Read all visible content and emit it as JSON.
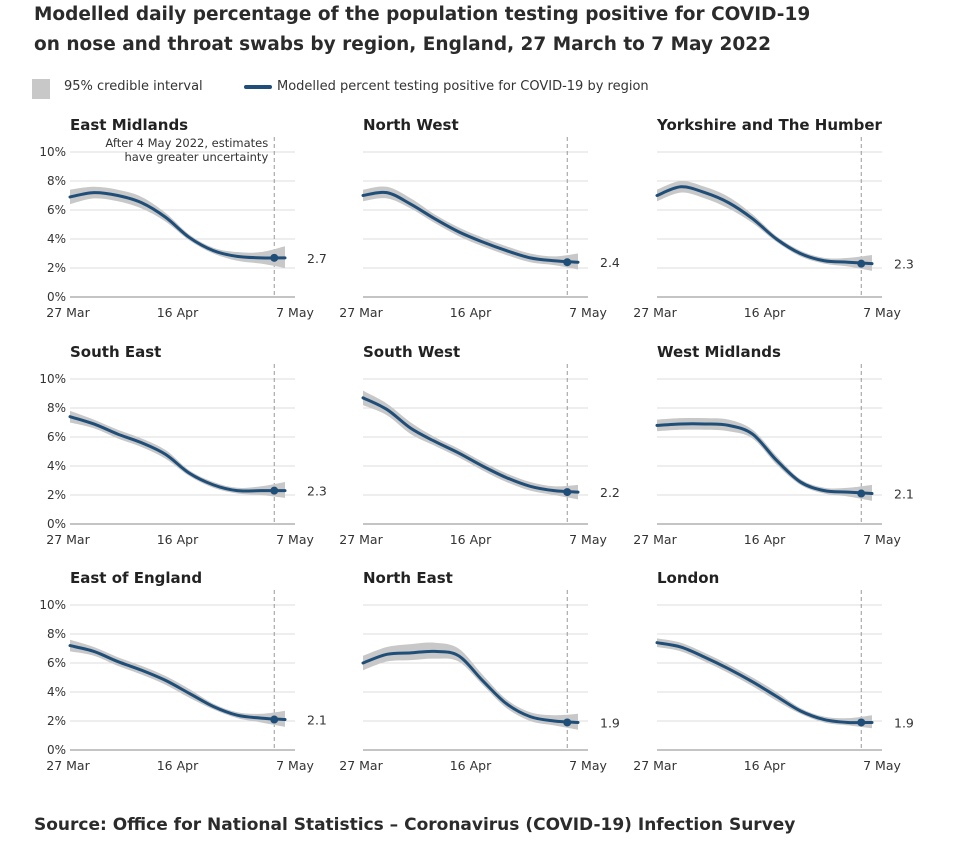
{
  "title_line1": "Modelled daily percentage of the population testing positive for COVID-19",
  "title_line2": "on nose and throat swabs by region, England, 27 March to 7 May 2022",
  "legend": {
    "ci": "95% credible interval",
    "line": "Modelled percent testing positive for COVID-19 by region"
  },
  "annotation": [
    "After 4 May 2022, estimates",
    "have greater uncertainty"
  ],
  "source": "Source: Office for National Statistics – Coronavirus (COVID-19) Infection Survey",
  "colors": {
    "line": "#1f4e79",
    "band": "#c8c8c8",
    "grid": "#dcdcdc",
    "text": "#333333",
    "dash": "#999999"
  },
  "chart_data": {
    "type": "line",
    "x_ticks": [
      "27 Mar",
      "16 Apr",
      "7 May"
    ],
    "y_ticks": [
      "0%",
      "2%",
      "4%",
      "6%",
      "8%",
      "10%"
    ],
    "ylim": [
      0,
      10
    ],
    "x_dates": [
      "27 Mar",
      "1 Apr",
      "6 Apr",
      "11 Apr",
      "16 Apr",
      "21 Apr",
      "26 Apr",
      "1 May",
      "4 May",
      "7 May"
    ],
    "uncertainty_after": "4 May",
    "panels": [
      {
        "name": "East Midlands",
        "end_label": "2.7",
        "values": [
          6.9,
          7.2,
          7.0,
          6.5,
          5.5,
          4.1,
          3.2,
          2.8,
          2.7,
          2.7
        ],
        "ci_low": [
          6.4,
          6.8,
          6.6,
          6.1,
          5.2,
          3.9,
          3.0,
          2.5,
          2.3,
          2.0
        ],
        "ci_high": [
          7.4,
          7.6,
          7.4,
          6.9,
          5.8,
          4.3,
          3.4,
          3.1,
          3.1,
          3.5
        ]
      },
      {
        "name": "North West",
        "end_label": "2.4",
        "values": [
          7.0,
          7.2,
          6.4,
          5.4,
          4.5,
          3.8,
          3.2,
          2.7,
          2.5,
          2.4
        ],
        "ci_low": [
          6.6,
          6.8,
          6.1,
          5.1,
          4.2,
          3.5,
          2.9,
          2.4,
          2.2,
          1.9
        ],
        "ci_high": [
          7.4,
          7.6,
          6.8,
          5.7,
          4.8,
          4.1,
          3.5,
          3.0,
          2.8,
          3.0
        ]
      },
      {
        "name": "Yorkshire and The Humber",
        "end_label": "2.3",
        "values": [
          7.0,
          7.6,
          7.2,
          6.5,
          5.4,
          4.0,
          3.0,
          2.5,
          2.4,
          2.3
        ],
        "ci_low": [
          6.6,
          7.2,
          6.8,
          6.1,
          5.1,
          3.8,
          2.8,
          2.3,
          2.1,
          1.8
        ],
        "ci_high": [
          7.4,
          8.0,
          7.6,
          6.9,
          5.7,
          4.2,
          3.2,
          2.7,
          2.7,
          2.9
        ]
      },
      {
        "name": "South East",
        "end_label": "2.3",
        "values": [
          7.4,
          6.9,
          6.2,
          5.6,
          4.8,
          3.5,
          2.7,
          2.3,
          2.3,
          2.3
        ],
        "ci_low": [
          7.0,
          6.6,
          5.9,
          5.3,
          4.5,
          3.3,
          2.5,
          2.1,
          2.0,
          1.8
        ],
        "ci_high": [
          7.8,
          7.2,
          6.5,
          5.9,
          5.1,
          3.7,
          2.9,
          2.5,
          2.6,
          2.9
        ]
      },
      {
        "name": "South West",
        "end_label": "2.2",
        "values": [
          8.7,
          7.9,
          6.6,
          5.7,
          4.9,
          4.0,
          3.2,
          2.6,
          2.3,
          2.2
        ],
        "ci_low": [
          8.2,
          7.5,
          6.2,
          5.4,
          4.6,
          3.7,
          2.9,
          2.3,
          2.0,
          1.7
        ],
        "ci_high": [
          9.2,
          8.3,
          7.0,
          6.0,
          5.2,
          4.3,
          3.5,
          2.9,
          2.6,
          2.7
        ]
      },
      {
        "name": "West Midlands",
        "end_label": "2.1",
        "values": [
          6.8,
          6.9,
          6.9,
          6.8,
          6.2,
          4.4,
          2.9,
          2.3,
          2.2,
          2.1
        ],
        "ci_low": [
          6.4,
          6.5,
          6.5,
          6.4,
          5.9,
          4.1,
          2.7,
          2.1,
          1.9,
          1.6
        ],
        "ci_high": [
          7.2,
          7.3,
          7.3,
          7.2,
          6.5,
          4.7,
          3.1,
          2.5,
          2.5,
          2.7
        ]
      },
      {
        "name": "East of England",
        "end_label": "2.1",
        "values": [
          7.2,
          6.8,
          6.1,
          5.5,
          4.8,
          3.9,
          3.0,
          2.4,
          2.2,
          2.1
        ],
        "ci_low": [
          6.8,
          6.5,
          5.8,
          5.2,
          4.5,
          3.6,
          2.8,
          2.2,
          1.9,
          1.6
        ],
        "ci_high": [
          7.6,
          7.1,
          6.4,
          5.8,
          5.1,
          4.2,
          3.2,
          2.6,
          2.5,
          2.7
        ]
      },
      {
        "name": "North East",
        "end_label": "1.9",
        "values": [
          6.0,
          6.6,
          6.7,
          6.8,
          6.5,
          4.8,
          3.2,
          2.3,
          2.0,
          1.9
        ],
        "ci_low": [
          5.5,
          6.1,
          6.2,
          6.3,
          6.1,
          4.5,
          2.9,
          2.0,
          1.7,
          1.4
        ],
        "ci_high": [
          6.5,
          7.1,
          7.3,
          7.4,
          7.0,
          5.2,
          3.5,
          2.6,
          2.4,
          2.5
        ]
      },
      {
        "name": "London",
        "end_label": "1.9",
        "values": [
          7.4,
          7.1,
          6.4,
          5.6,
          4.7,
          3.7,
          2.7,
          2.1,
          1.9,
          1.9
        ],
        "ci_low": [
          7.1,
          6.8,
          6.1,
          5.3,
          4.4,
          3.4,
          2.5,
          1.9,
          1.7,
          1.5
        ],
        "ci_high": [
          7.7,
          7.4,
          6.7,
          5.9,
          5.0,
          4.0,
          2.9,
          2.3,
          2.2,
          2.4
        ]
      }
    ]
  }
}
